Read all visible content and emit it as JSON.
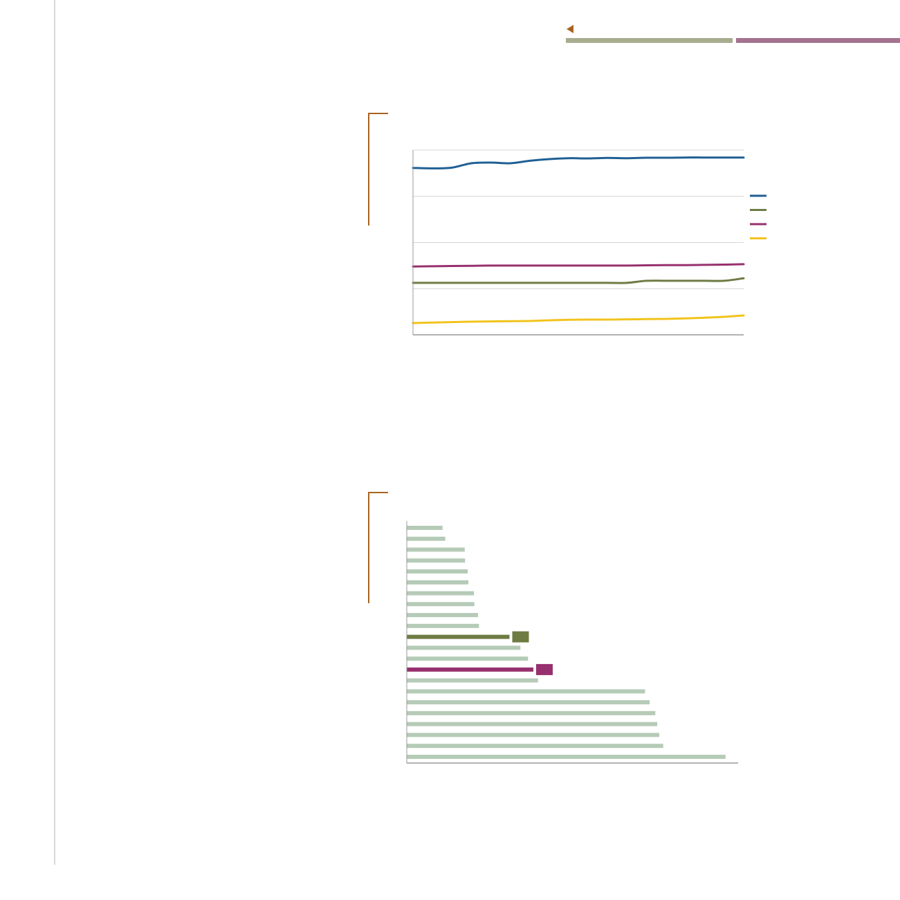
{
  "theme": {
    "accent": "#a8621f",
    "divider": "#d9d9d9",
    "tab_colors": [
      "#a8ac8e",
      "#a4728f"
    ]
  },
  "nav": {
    "back_icon": "triangle-left-icon",
    "tabs": [
      {
        "color": "#a8ac8e"
      },
      {
        "color": "#a4728f"
      }
    ]
  },
  "chart_data": [
    {
      "type": "line",
      "title": "",
      "xlabel": "",
      "ylabel": "",
      "x": [
        1,
        2,
        3,
        4,
        5,
        6,
        7,
        8,
        9,
        10,
        11,
        12,
        13,
        14,
        15,
        16,
        17,
        18
      ],
      "ylim": [
        0,
        80
      ],
      "grid": true,
      "legend_position": "right",
      "series": [
        {
          "color": "#1f5f94",
          "values": [
            72.3,
            72.1,
            72.4,
            74.3,
            74.6,
            74.3,
            75.4,
            76.1,
            76.5,
            76.4,
            76.6,
            76.5,
            76.7,
            76.7,
            76.8,
            76.8,
            76.8,
            76.8
          ]
        },
        {
          "color": "#6e7b43",
          "values": [
            22.5,
            22.5,
            22.5,
            22.5,
            22.5,
            22.5,
            22.5,
            22.5,
            22.5,
            22.5,
            22.5,
            22.5,
            23.4,
            23.4,
            23.4,
            23.4,
            23.4,
            24.5
          ]
        },
        {
          "color": "#97306e",
          "values": [
            29.6,
            29.7,
            29.8,
            29.9,
            30.0,
            30.0,
            30.0,
            30.0,
            30.0,
            30.0,
            30.0,
            30.0,
            30.1,
            30.2,
            30.2,
            30.3,
            30.4,
            30.6
          ]
        },
        {
          "color": "#f2c31c",
          "values": [
            5.1,
            5.3,
            5.5,
            5.7,
            5.8,
            5.9,
            6.0,
            6.3,
            6.5,
            6.6,
            6.6,
            6.7,
            6.8,
            6.9,
            7.1,
            7.4,
            7.8,
            8.4
          ]
        }
      ]
    },
    {
      "type": "bar",
      "orientation": "horizontal",
      "title": "",
      "xlabel": "",
      "ylabel": "",
      "xlim": [
        0,
        100
      ],
      "grid": false,
      "default_color": "#b5cbb7",
      "values": [
        10.8,
        11.6,
        17.5,
        17.6,
        18.4,
        18.6,
        20.3,
        20.4,
        21.5,
        21.8,
        31.0,
        34.3,
        36.6,
        38.2,
        39.6,
        71.9,
        73.3,
        75.0,
        75.6,
        76.2,
        77.4,
        96.2
      ],
      "highlights": [
        {
          "index": 10,
          "color": "#6e7b43",
          "marker": true
        },
        {
          "index": 13,
          "color": "#97306e",
          "marker": true
        }
      ]
    }
  ]
}
